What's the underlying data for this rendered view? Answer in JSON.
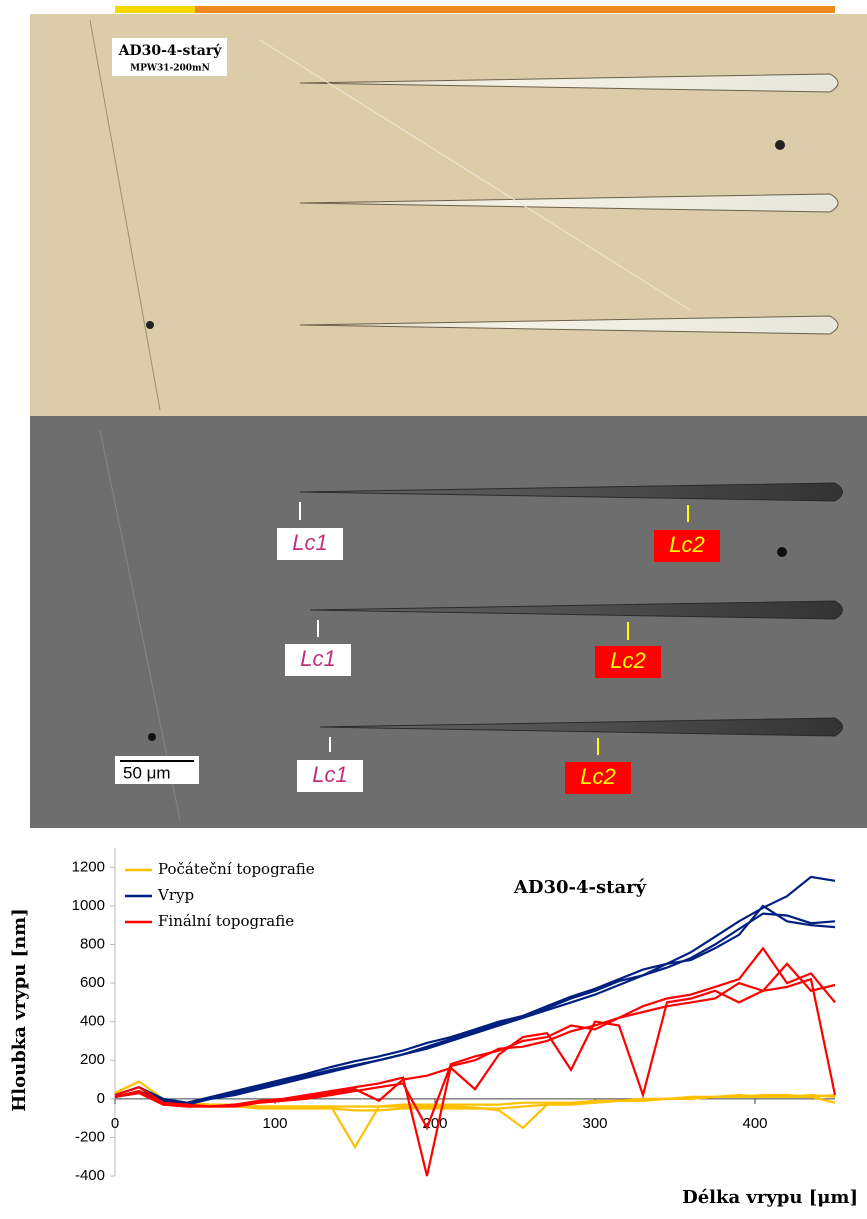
{
  "header": {
    "title": "AD30-4-starý",
    "subtitle": "MPW31-200mN"
  },
  "annotations": [
    "Lc1",
    "Lc2",
    "Lc1",
    "Lc2",
    "Lc1",
    "Lc2"
  ],
  "scale_bar": "50 μm",
  "chart_data": {
    "type": "line",
    "title": "AD30-4-starý",
    "y_label": "Hloubka vrypu [nm]",
    "x_label": "Délka vrypu [μm]",
    "x": [
      0,
      15,
      30,
      45,
      60,
      75,
      90,
      105,
      120,
      135,
      150,
      165,
      180,
      195,
      210,
      225,
      240,
      255,
      270,
      285,
      300,
      315,
      330,
      345,
      360,
      375,
      390,
      405,
      420,
      435,
      450
    ],
    "xlim": [
      0,
      450
    ],
    "xticks": [
      0,
      100,
      200,
      300,
      400
    ],
    "ylim": [
      -400,
      1300
    ],
    "yticks": [
      -400,
      -200,
      0,
      200,
      400,
      600,
      800,
      1000,
      1200
    ],
    "series": [
      {
        "name": "Počáteční topografie",
        "color": "#ffc000",
        "values": [
          [
            30,
            90,
            0,
            -20,
            -30,
            -30,
            -40,
            -40,
            -40,
            -40,
            -250,
            -40,
            -40,
            -40,
            -40,
            -45,
            -60,
            -150,
            -30,
            -20,
            -20,
            -10,
            -10,
            0,
            0,
            10,
            10,
            10,
            10,
            10,
            20
          ],
          [
            20,
            60,
            -10,
            -30,
            -40,
            -40,
            -50,
            -50,
            -50,
            -50,
            -60,
            -60,
            -50,
            -50,
            -50,
            -50,
            -50,
            -40,
            -30,
            -30,
            -20,
            -10,
            -10,
            0,
            10,
            10,
            20,
            10,
            10,
            20,
            10
          ],
          [
            10,
            40,
            -20,
            -30,
            -30,
            -30,
            -40,
            -40,
            -40,
            -40,
            -40,
            -40,
            -30,
            -30,
            -30,
            -30,
            -30,
            -20,
            -20,
            -20,
            -10,
            -10,
            0,
            0,
            0,
            10,
            10,
            20,
            20,
            10,
            -20
          ]
        ]
      },
      {
        "name": "Vryp",
        "color": "#002080",
        "values": [
          [
            20,
            60,
            0,
            -20,
            10,
            40,
            70,
            100,
            130,
            165,
            195,
            220,
            250,
            290,
            320,
            360,
            400,
            430,
            470,
            520,
            560,
            610,
            640,
            700,
            760,
            840,
            920,
            990,
            1050,
            1150,
            1130
          ],
          [
            10,
            40,
            -10,
            -30,
            0,
            30,
            60,
            90,
            120,
            150,
            175,
            200,
            230,
            260,
            300,
            340,
            380,
            420,
            460,
            500,
            540,
            590,
            640,
            680,
            730,
            800,
            880,
            960,
            950,
            910,
            920
          ],
          [
            10,
            30,
            -10,
            -20,
            0,
            20,
            50,
            80,
            110,
            140,
            170,
            200,
            230,
            270,
            310,
            350,
            390,
            430,
            480,
            530,
            570,
            620,
            670,
            700,
            720,
            780,
            850,
            1000,
            920,
            900,
            890
          ]
        ]
      },
      {
        "name": "Finální topografie",
        "color": "#ff0000",
        "values": [
          [
            20,
            60,
            -20,
            -30,
            -40,
            -30,
            -10,
            0,
            20,
            40,
            60,
            80,
            110,
            -400,
            170,
            200,
            260,
            270,
            300,
            350,
            380,
            420,
            450,
            480,
            500,
            520,
            600,
            560,
            580,
            620,
            20
          ],
          [
            10,
            40,
            -30,
            -40,
            -40,
            -30,
            -20,
            -10,
            10,
            30,
            50,
            -10,
            100,
            120,
            160,
            50,
            230,
            320,
            340,
            150,
            400,
            380,
            20,
            500,
            520,
            560,
            500,
            560,
            700,
            560,
            590
          ],
          [
            10,
            30,
            -30,
            -40,
            -40,
            -40,
            -20,
            -10,
            0,
            20,
            40,
            60,
            80,
            -150,
            180,
            220,
            250,
            300,
            320,
            380,
            360,
            420,
            480,
            520,
            540,
            580,
            620,
            780,
            600,
            650,
            500
          ]
        ]
      }
    ],
    "legend": "upper left"
  }
}
